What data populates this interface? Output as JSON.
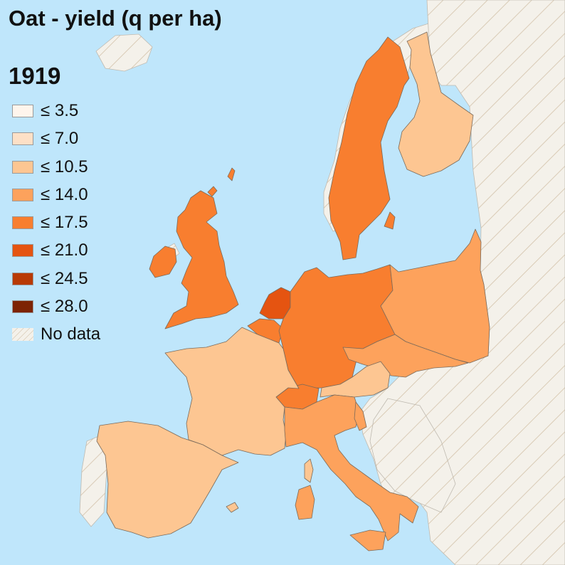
{
  "title": "Oat - yield (q per ha)",
  "year": "1919",
  "legend": [
    {
      "label": "≤ 3.5",
      "color": "#fef5ec"
    },
    {
      "label": "≤ 7.0",
      "color": "#fde0c6"
    },
    {
      "label": "≤ 10.5",
      "color": "#fdc692"
    },
    {
      "label": "≤ 14.0",
      "color": "#fda25c"
    },
    {
      "label": "≤ 17.5",
      "color": "#f87e2f"
    },
    {
      "label": "≤ 21.0",
      "color": "#e55411"
    },
    {
      "label": "≤ 24.5",
      "color": "#b83a05"
    },
    {
      "label": "≤ 28.0",
      "color": "#7d2304"
    }
  ],
  "no_data_label": "No data",
  "colors": {
    "sea": "#bfe6fb",
    "no_data_fill": "#f4f1ea",
    "no_data_hatch": "#d9cbb6",
    "border": "#7a6a5a"
  },
  "regions": [
    {
      "name": "sweden",
      "class": "≤ 17.5"
    },
    {
      "name": "finland",
      "class": "≤ 10.5"
    },
    {
      "name": "united-kingdom",
      "class": "≤ 17.5"
    },
    {
      "name": "ireland",
      "class": "≤ 17.5"
    },
    {
      "name": "netherlands",
      "class": "≤ 21.0"
    },
    {
      "name": "belgium",
      "class": "≤ 17.5"
    },
    {
      "name": "germany",
      "class": "≤ 17.5"
    },
    {
      "name": "poland",
      "class": "≤ 14.0"
    },
    {
      "name": "czechoslovakia",
      "class": "≤ 14.0"
    },
    {
      "name": "austria",
      "class": "≤ 10.5"
    },
    {
      "name": "switzerland",
      "class": "≤ 17.5"
    },
    {
      "name": "france",
      "class": "≤ 10.5"
    },
    {
      "name": "spain",
      "class": "≤ 10.5"
    },
    {
      "name": "italy",
      "class": "≤ 14.0"
    }
  ]
}
